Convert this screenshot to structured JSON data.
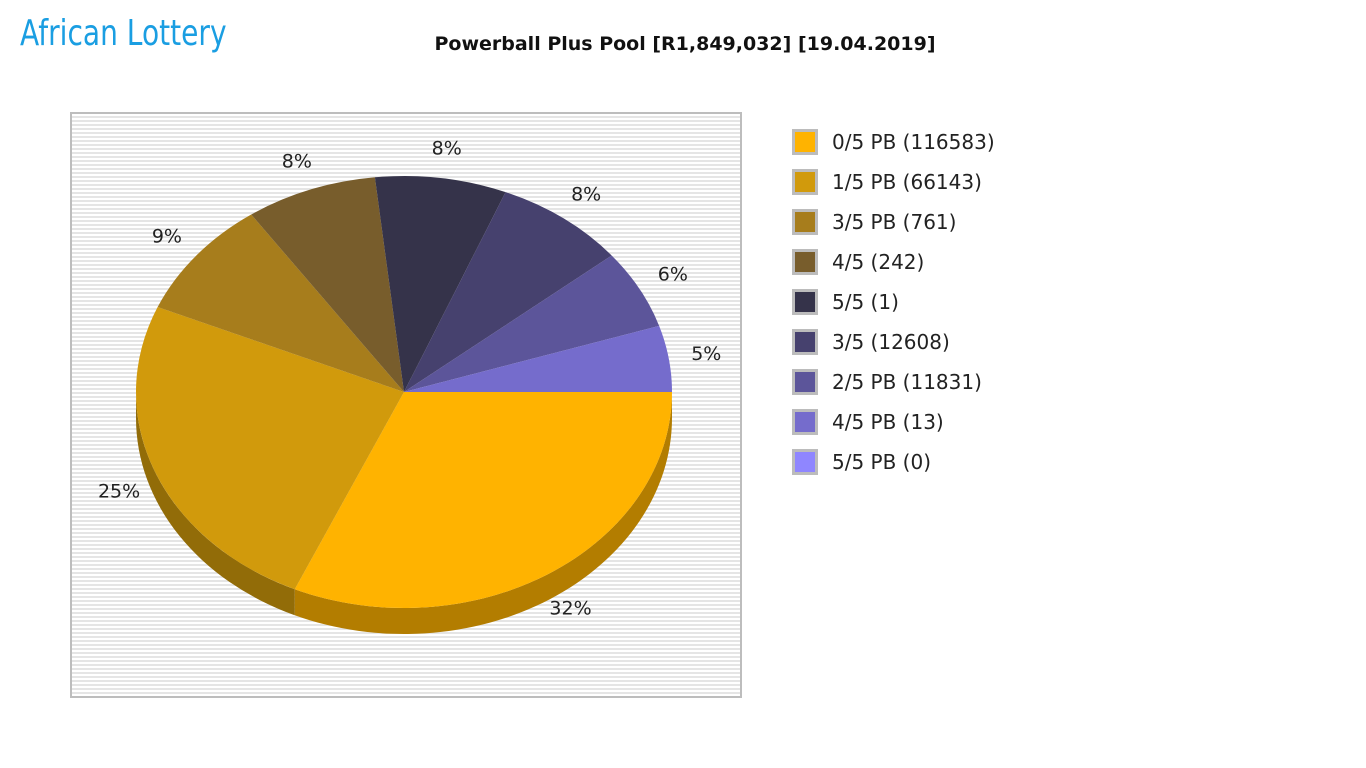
{
  "logo": {
    "text": "African Lottery",
    "color": "#1a9ee2"
  },
  "chart_data": {
    "type": "pie",
    "title": "Powerball Plus Pool [R1,849,032] [19.04.2019]",
    "legend_position": "right",
    "slices": [
      {
        "legend": "0/5 PB (116583)",
        "percent": 32,
        "pct_label": "32%",
        "color": "#ffb300"
      },
      {
        "legend": "1/5 PB (66143)",
        "percent": 25,
        "pct_label": "25%",
        "color": "#d19a0c"
      },
      {
        "legend": "3/5 PB (761)",
        "percent": 9,
        "pct_label": "9%",
        "color": "#a77d1c"
      },
      {
        "legend": "4/5 (242)",
        "percent": 8,
        "pct_label": "8%",
        "color": "#785d2c"
      },
      {
        "legend": "5/5 (1)",
        "percent": 8,
        "pct_label": "8%",
        "color": "#35334a"
      },
      {
        "legend": "3/5 (12608)",
        "percent": 8,
        "pct_label": "8%",
        "color": "#46416e"
      },
      {
        "legend": "2/5 PB (11831)",
        "percent": 6,
        "pct_label": "6%",
        "color": "#5c559a"
      },
      {
        "legend": "4/5 PB (13)",
        "percent": 5,
        "pct_label": "5%",
        "color": "#756ccc"
      },
      {
        "legend": "5/5 PB (0)",
        "percent": 0,
        "pct_label": "",
        "color": "#8f86ff"
      }
    ]
  }
}
